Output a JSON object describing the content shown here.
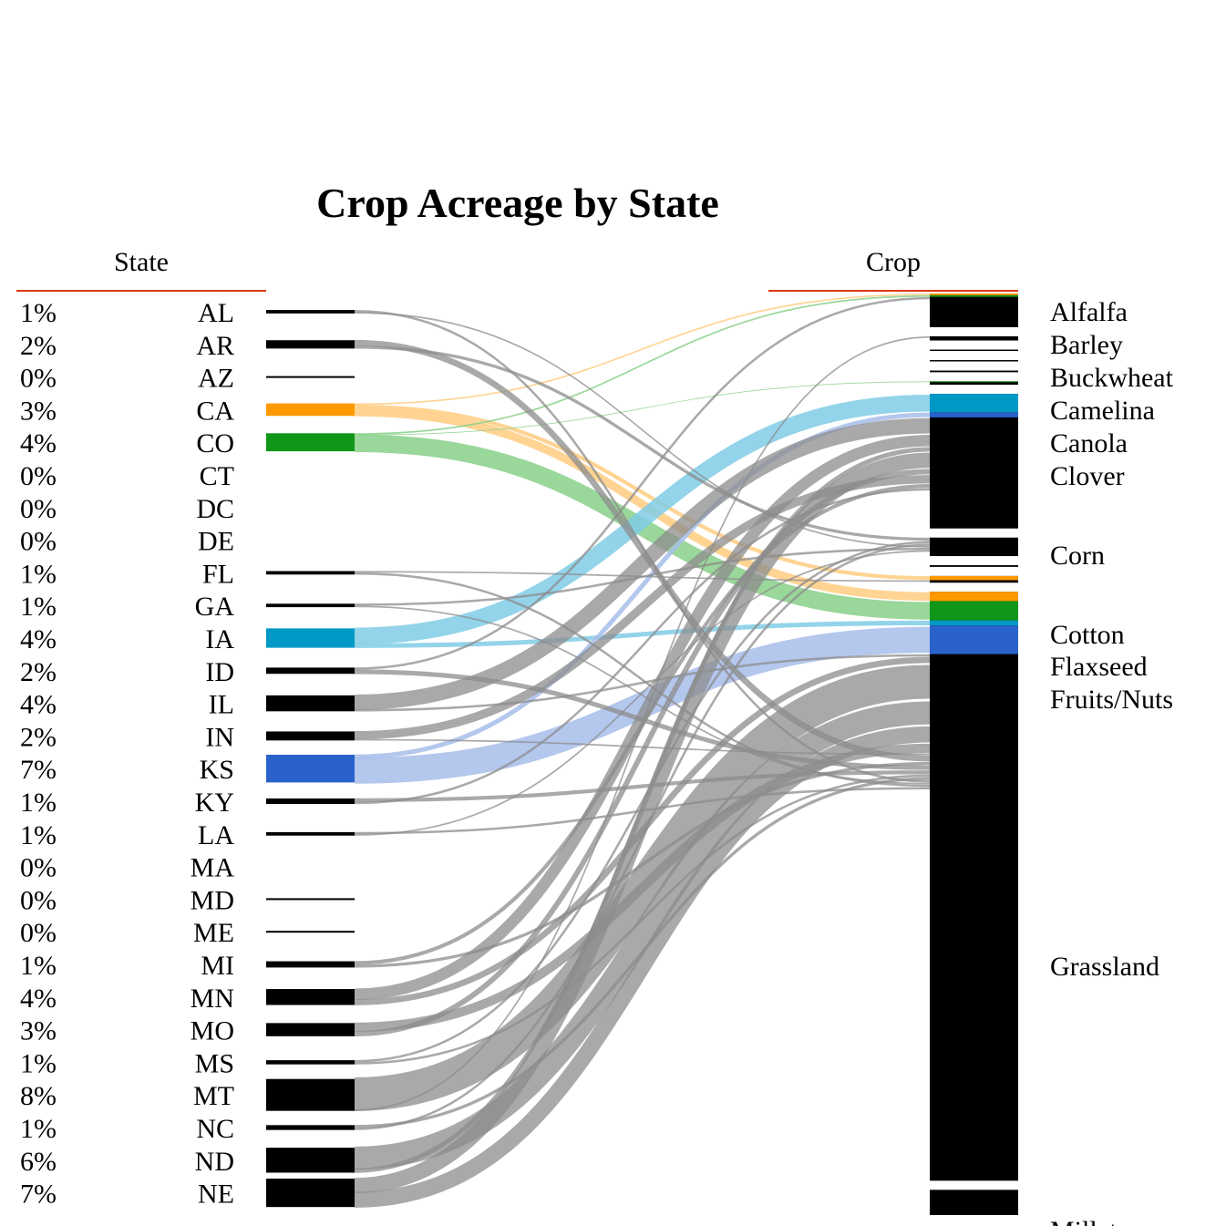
{
  "chart_data": {
    "type": "sankey",
    "title": "Crop Acreage by State",
    "left_header": "State",
    "right_header": "Crop",
    "states": [
      {
        "code": "AL",
        "pct": "1%",
        "share": 0.5,
        "color": "#000000"
      },
      {
        "code": "AR",
        "pct": "2%",
        "share": 1.2,
        "color": "#000000"
      },
      {
        "code": "AZ",
        "pct": "0%",
        "share": 0.2,
        "color": "#000000"
      },
      {
        "code": "CA",
        "pct": "3%",
        "share": 1.8,
        "color": "#ff9900"
      },
      {
        "code": "CO",
        "pct": "4%",
        "share": 2.6,
        "color": "#109618"
      },
      {
        "code": "CT",
        "pct": "0%",
        "share": 0.0,
        "color": "#000000"
      },
      {
        "code": "DC",
        "pct": "0%",
        "share": 0.0,
        "color": "#000000"
      },
      {
        "code": "DE",
        "pct": "0%",
        "share": 0.0,
        "color": "#000000"
      },
      {
        "code": "FL",
        "pct": "1%",
        "share": 0.5,
        "color": "#000000"
      },
      {
        "code": "GA",
        "pct": "1%",
        "share": 0.5,
        "color": "#000000"
      },
      {
        "code": "IA",
        "pct": "4%",
        "share": 2.8,
        "color": "#0099c6"
      },
      {
        "code": "ID",
        "pct": "2%",
        "share": 0.9,
        "color": "#000000"
      },
      {
        "code": "IL",
        "pct": "4%",
        "share": 2.3,
        "color": "#000000"
      },
      {
        "code": "IN",
        "pct": "2%",
        "share": 1.3,
        "color": "#000000"
      },
      {
        "code": "KS",
        "pct": "7%",
        "share": 4.0,
        "color": "#2a62cc"
      },
      {
        "code": "KY",
        "pct": "1%",
        "share": 0.8,
        "color": "#000000"
      },
      {
        "code": "LA",
        "pct": "1%",
        "share": 0.5,
        "color": "#000000"
      },
      {
        "code": "MA",
        "pct": "0%",
        "share": 0.0,
        "color": "#000000"
      },
      {
        "code": "MD",
        "pct": "0%",
        "share": 0.2,
        "color": "#000000"
      },
      {
        "code": "ME",
        "pct": "0%",
        "share": 0.2,
        "color": "#000000"
      },
      {
        "code": "MI",
        "pct": "1%",
        "share": 0.9,
        "color": "#000000"
      },
      {
        "code": "MN",
        "pct": "4%",
        "share": 2.3,
        "color": "#000000"
      },
      {
        "code": "MO",
        "pct": "3%",
        "share": 1.9,
        "color": "#000000"
      },
      {
        "code": "MS",
        "pct": "1%",
        "share": 0.6,
        "color": "#000000"
      },
      {
        "code": "MT",
        "pct": "8%",
        "share": 4.6,
        "color": "#000000"
      },
      {
        "code": "NC",
        "pct": "1%",
        "share": 0.7,
        "color": "#000000"
      },
      {
        "code": "ND",
        "pct": "6%",
        "share": 3.6,
        "color": "#000000"
      },
      {
        "code": "NE",
        "pct": "7%",
        "share": 4.1,
        "color": "#000000"
      }
    ],
    "crops": [
      {
        "name": "Alfalfa",
        "share": 4.0
      },
      {
        "name": "Barley",
        "share": 0.5
      },
      {
        "name": "Buckwheat",
        "share": 0.0
      },
      {
        "name": "Camelina",
        "share": 0.0
      },
      {
        "name": "Canola",
        "share": 0.2
      },
      {
        "name": "Clover",
        "share": 0.4
      },
      {
        "name": "Corn",
        "share": 16.0
      },
      {
        "name": "Cotton",
        "share": 2.2
      },
      {
        "name": "Flaxseed",
        "share": 0.2
      },
      {
        "name": "Fruits/Nuts",
        "share": 0.8
      },
      {
        "name": "Grassland",
        "share": 70.0
      },
      {
        "name": "Millet",
        "share": 3.0
      }
    ],
    "flows": [
      {
        "from": "CA",
        "to": "Alfalfa",
        "value": 0.2
      },
      {
        "from": "CA",
        "to": "Fruits/Nuts",
        "value": 0.5
      },
      {
        "from": "CA",
        "to": "Grassland",
        "value": 1.1
      },
      {
        "from": "CO",
        "to": "Alfalfa",
        "value": 0.2
      },
      {
        "from": "CO",
        "to": "Clover",
        "value": 0.1
      },
      {
        "from": "CO",
        "to": "Grassland",
        "value": 2.3
      },
      {
        "from": "IA",
        "to": "Corn",
        "value": 2.2
      },
      {
        "from": "IA",
        "to": "Grassland",
        "value": 0.6
      },
      {
        "from": "KS",
        "to": "Corn",
        "value": 0.6
      },
      {
        "from": "KS",
        "to": "Grassland",
        "value": 3.4
      },
      {
        "from": "IL",
        "to": "Corn",
        "value": 2.0
      },
      {
        "from": "IL",
        "to": "Grassland",
        "value": 0.3
      },
      {
        "from": "MN",
        "to": "Corn",
        "value": 1.5
      },
      {
        "from": "MN",
        "to": "Grassland",
        "value": 0.8
      },
      {
        "from": "MT",
        "to": "Grassland",
        "value": 4.4
      },
      {
        "from": "MT",
        "to": "Barley",
        "value": 0.2
      },
      {
        "from": "ND",
        "to": "Grassland",
        "value": 3.0
      },
      {
        "from": "ND",
        "to": "Corn",
        "value": 0.6
      },
      {
        "from": "NE",
        "to": "Corn",
        "value": 2.0
      },
      {
        "from": "NE",
        "to": "Grassland",
        "value": 2.1
      },
      {
        "from": "MO",
        "to": "Grassland",
        "value": 1.2
      },
      {
        "from": "MO",
        "to": "Corn",
        "value": 0.7
      },
      {
        "from": "IN",
        "to": "Corn",
        "value": 1.1
      },
      {
        "from": "IN",
        "to": "Grassland",
        "value": 0.2
      },
      {
        "from": "AR",
        "to": "Grassland",
        "value": 0.8
      },
      {
        "from": "AR",
        "to": "Cotton",
        "value": 0.4
      },
      {
        "from": "MI",
        "to": "Corn",
        "value": 0.5
      },
      {
        "from": "MI",
        "to": "Grassland",
        "value": 0.4
      },
      {
        "from": "ID",
        "to": "Alfalfa",
        "value": 0.3
      },
      {
        "from": "ID",
        "to": "Grassland",
        "value": 0.6
      },
      {
        "from": "KY",
        "to": "Grassland",
        "value": 0.5
      },
      {
        "from": "KY",
        "to": "Corn",
        "value": 0.3
      },
      {
        "from": "MS",
        "to": "Cotton",
        "value": 0.3
      },
      {
        "from": "MS",
        "to": "Grassland",
        "value": 0.3
      },
      {
        "from": "NC",
        "to": "Grassland",
        "value": 0.4
      },
      {
        "from": "NC",
        "to": "Cotton",
        "value": 0.3
      },
      {
        "from": "AL",
        "to": "Grassland",
        "value": 0.3
      },
      {
        "from": "AL",
        "to": "Cotton",
        "value": 0.2
      },
      {
        "from": "GA",
        "to": "Cotton",
        "value": 0.3
      },
      {
        "from": "GA",
        "to": "Grassland",
        "value": 0.2
      },
      {
        "from": "FL",
        "to": "Fruits/Nuts",
        "value": 0.2
      },
      {
        "from": "FL",
        "to": "Grassland",
        "value": 0.3
      },
      {
        "from": "LA",
        "to": "Grassland",
        "value": 0.3
      },
      {
        "from": "LA",
        "to": "Cotton",
        "value": 0.2
      }
    ]
  }
}
